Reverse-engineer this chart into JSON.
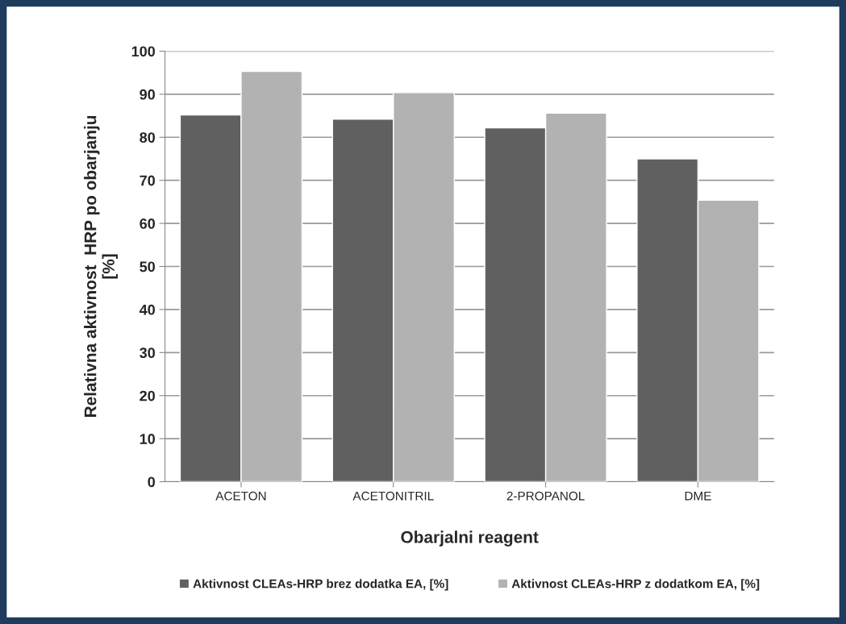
{
  "chart_data": {
    "type": "bar",
    "xlabel": "Obarjalni reagent",
    "ylabel": "Relativna aktivnost  HRP po obarjanju\n[%]",
    "categories": [
      "ACETON",
      "ACETONITRIL",
      "2-PROPANOL",
      "DME"
    ],
    "series": [
      {
        "name": "Aktivnost CLEAs-HRP brez dodatka EA, [%]",
        "color": "#606060",
        "values": [
          85.2,
          84.2,
          82.2,
          75
        ]
      },
      {
        "name": "Aktivnost CLEAs-HRP z dodatkom EA, [%]",
        "color": "#b2b2b2",
        "values": [
          95.3,
          90.4,
          85.6,
          65.4
        ]
      }
    ],
    "ylim": [
      0,
      100
    ],
    "yticks": [
      0,
      10,
      20,
      30,
      40,
      50,
      60,
      70,
      80,
      90,
      100
    ],
    "grid": "y",
    "legend": "bottom"
  }
}
